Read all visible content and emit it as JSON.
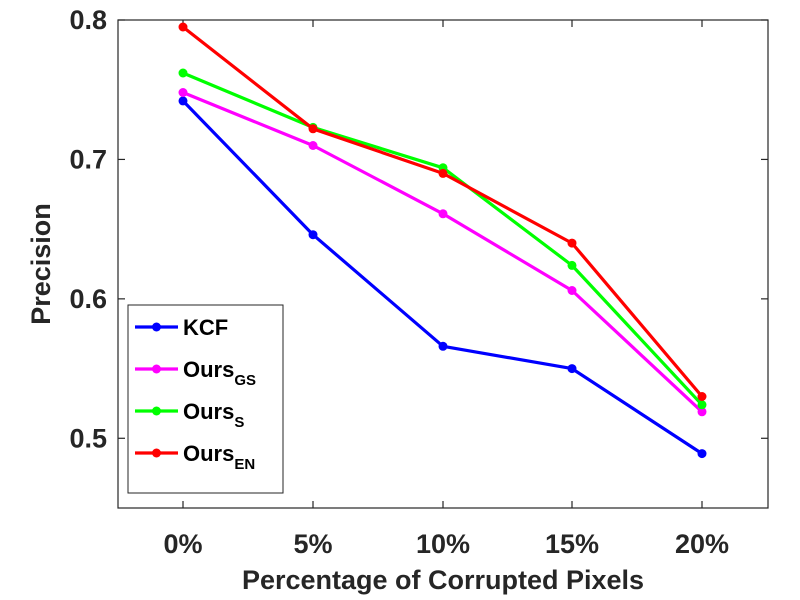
{
  "chart_data": {
    "type": "line",
    "title": "",
    "xlabel": "Percentage of Corrupted Pixels",
    "ylabel": "Precision",
    "categories": [
      "0%",
      "5%",
      "10%",
      "15%",
      "20%"
    ],
    "ylim": [
      0.45,
      0.8
    ],
    "yticks": [
      0.5,
      0.6,
      0.7,
      0.8
    ],
    "ytick_labels": [
      "0.5",
      "0.6",
      "0.7",
      "0.8"
    ],
    "grid": false,
    "legend_position": "bottom-left",
    "series": [
      {
        "name": "KCF",
        "sub": "",
        "color": "#0000ff",
        "values": [
          0.742,
          0.646,
          0.566,
          0.55,
          0.489
        ]
      },
      {
        "name": "Ours",
        "sub": "GS",
        "color": "#ff00ff",
        "values": [
          0.748,
          0.71,
          0.661,
          0.606,
          0.519
        ]
      },
      {
        "name": "Ours",
        "sub": "S",
        "color": "#00ff00",
        "values": [
          0.762,
          0.723,
          0.694,
          0.624,
          0.524
        ]
      },
      {
        "name": "Ours",
        "sub": "EN",
        "color": "#ff0000",
        "values": [
          0.795,
          0.722,
          0.69,
          0.64,
          0.53
        ]
      }
    ]
  }
}
